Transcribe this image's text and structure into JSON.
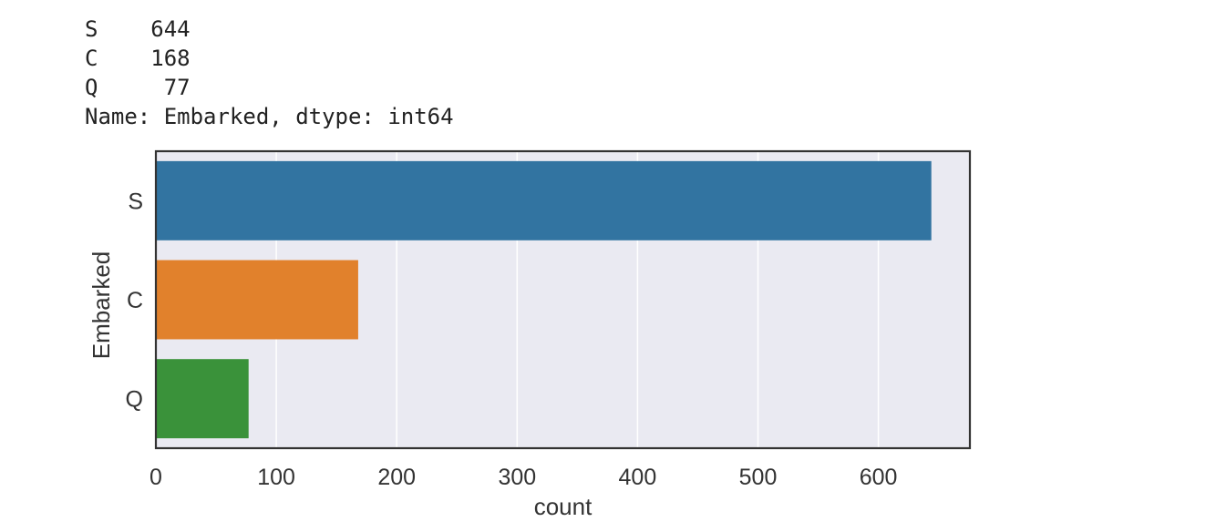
{
  "output": {
    "lines": [
      {
        "key": "S",
        "value": "644"
      },
      {
        "key": "C",
        "value": "168"
      },
      {
        "key": "Q",
        "value": " 77"
      }
    ],
    "footer": "Name: Embarked, dtype: int64"
  },
  "chart_data": {
    "type": "bar",
    "orientation": "horizontal",
    "categories": [
      "S",
      "C",
      "Q"
    ],
    "values": [
      644,
      168,
      77
    ],
    "colors": [
      "#3274a1",
      "#e1812c",
      "#3a923a"
    ],
    "title": "",
    "xlabel": "count",
    "ylabel": "Embarked",
    "xlim": [
      0,
      676
    ],
    "xticks": [
      0,
      100,
      200,
      300,
      400,
      500,
      600
    ],
    "grid": true,
    "background": "#eaeaf2",
    "legend": "none"
  }
}
